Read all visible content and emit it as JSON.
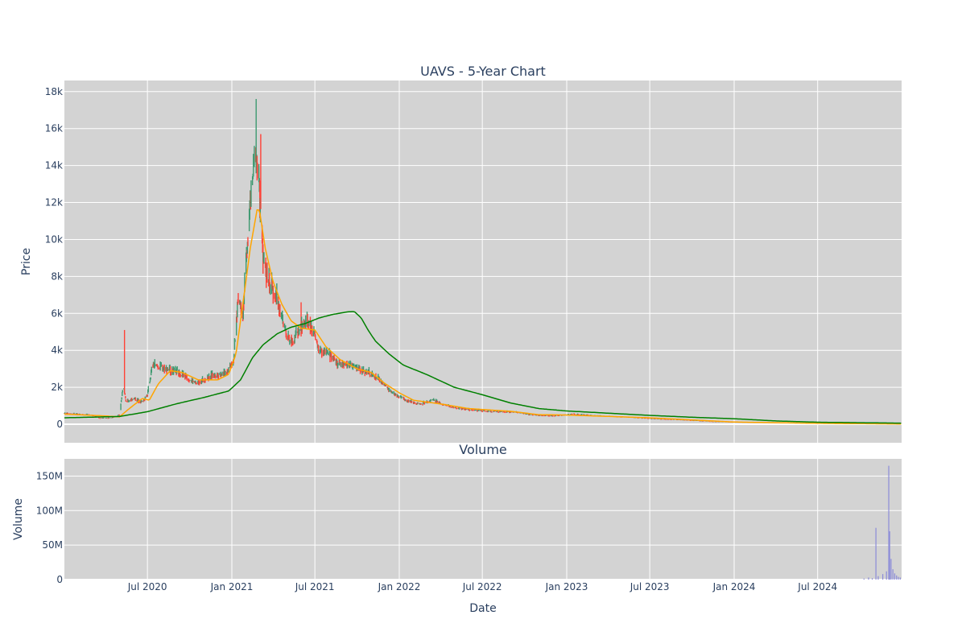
{
  "chart_data": [
    {
      "type": "candlestick",
      "title": "UAVS - 5-Year Chart",
      "ylabel": "Price",
      "ylim": [
        -1000,
        18600
      ],
      "yticks": [
        0,
        2000,
        4000,
        6000,
        8000,
        10000,
        12000,
        14000,
        16000,
        18000
      ],
      "ytick_labels": [
        "0",
        "2k",
        "4k",
        "6k",
        "8k",
        "10k",
        "12k",
        "14k",
        "16k",
        "18k"
      ],
      "x_range": [
        "2020-01-02",
        "2024-12-31"
      ],
      "grid": true,
      "background": "#d3d3d3",
      "increasing_color": "#3d9970",
      "decreasing_color": "#ff4136",
      "ma_short_color": "#ffa500",
      "ma_long_color": "#008000",
      "price_anchors": [
        [
          "2020-01-02",
          600
        ],
        [
          "2020-02-01",
          550
        ],
        [
          "2020-03-01",
          500
        ],
        [
          "2020-03-20",
          320
        ],
        [
          "2020-04-15",
          350
        ],
        [
          "2020-05-01",
          500
        ],
        [
          "2020-05-10",
          2300
        ],
        [
          "2020-05-15",
          1200
        ],
        [
          "2020-06-01",
          1400
        ],
        [
          "2020-06-20",
          1200
        ],
        [
          "2020-07-01",
          1600
        ],
        [
          "2020-07-12",
          3200
        ],
        [
          "2020-08-15",
          3000
        ],
        [
          "2020-09-15",
          2700
        ],
        [
          "2020-10-15",
          2200
        ],
        [
          "2020-11-15",
          2600
        ],
        [
          "2020-12-20",
          2800
        ],
        [
          "2021-01-05",
          3500
        ],
        [
          "2021-01-15",
          7000
        ],
        [
          "2021-01-25",
          6000
        ],
        [
          "2021-02-10",
          12000
        ],
        [
          "2021-02-22",
          15000
        ],
        [
          "2021-03-01",
          13000
        ],
        [
          "2021-03-10",
          9000
        ],
        [
          "2021-03-25",
          7500
        ],
        [
          "2021-04-10",
          6800
        ],
        [
          "2021-04-25",
          5200
        ],
        [
          "2021-05-10",
          4500
        ],
        [
          "2021-05-25",
          5000
        ],
        [
          "2021-06-10",
          5500
        ],
        [
          "2021-06-25",
          5200
        ],
        [
          "2021-07-10",
          4000
        ],
        [
          "2021-08-01",
          3800
        ],
        [
          "2021-08-20",
          3300
        ],
        [
          "2021-09-15",
          3200
        ],
        [
          "2021-10-15",
          2900
        ],
        [
          "2021-11-15",
          2500
        ],
        [
          "2021-12-15",
          1700
        ],
        [
          "2022-01-15",
          1300
        ],
        [
          "2022-02-15",
          1100
        ],
        [
          "2022-03-15",
          1300
        ],
        [
          "2022-04-15",
          1000
        ],
        [
          "2022-05-15",
          850
        ],
        [
          "2022-06-15",
          750
        ],
        [
          "2022-07-15",
          700
        ],
        [
          "2022-09-15",
          650
        ],
        [
          "2022-10-15",
          500
        ],
        [
          "2022-12-01",
          450
        ],
        [
          "2023-01-15",
          550
        ],
        [
          "2023-03-15",
          450
        ],
        [
          "2023-05-15",
          380
        ],
        [
          "2023-07-15",
          280
        ],
        [
          "2023-09-15",
          220
        ],
        [
          "2023-11-15",
          130
        ],
        [
          "2024-01-15",
          100
        ],
        [
          "2024-03-15",
          80
        ],
        [
          "2024-05-15",
          60
        ],
        [
          "2024-07-15",
          40
        ],
        [
          "2024-09-15",
          25
        ],
        [
          "2024-11-15",
          10
        ],
        [
          "2024-12-31",
          5
        ]
      ],
      "spikes": [
        [
          "2020-05-12",
          5100
        ],
        [
          "2021-01-10",
          8600
        ],
        [
          "2021-02-14",
          15000
        ],
        [
          "2021-02-23",
          17600
        ],
        [
          "2021-03-05",
          15700
        ],
        [
          "2021-03-20",
          8300
        ],
        [
          "2021-06-01",
          6600
        ]
      ],
      "ma_short": [
        [
          "2020-01-02",
          550
        ],
        [
          "2020-04-01",
          450
        ],
        [
          "2020-05-01",
          400
        ],
        [
          "2020-05-25",
          900
        ],
        [
          "2020-06-20",
          1400
        ],
        [
          "2020-07-05",
          1300
        ],
        [
          "2020-07-25",
          2200
        ],
        [
          "2020-08-20",
          2900
        ],
        [
          "2020-09-15",
          2800
        ],
        [
          "2020-10-20",
          2400
        ],
        [
          "2020-12-01",
          2400
        ],
        [
          "2020-12-25",
          2700
        ],
        [
          "2021-01-10",
          3800
        ],
        [
          "2021-01-25",
          6500
        ],
        [
          "2021-02-10",
          9500
        ],
        [
          "2021-02-25",
          11600
        ],
        [
          "2021-03-02",
          11600
        ],
        [
          "2021-03-15",
          9500
        ],
        [
          "2021-04-01",
          7700
        ],
        [
          "2021-04-20",
          6500
        ],
        [
          "2021-05-10",
          5600
        ],
        [
          "2021-06-01",
          5200
        ],
        [
          "2021-07-01",
          5100
        ],
        [
          "2021-07-25",
          4200
        ],
        [
          "2021-08-25",
          3500
        ],
        [
          "2021-10-01",
          3000
        ],
        [
          "2021-11-01",
          2800
        ],
        [
          "2021-12-01",
          2200
        ],
        [
          "2022-01-01",
          1700
        ],
        [
          "2022-02-01",
          1300
        ],
        [
          "2022-04-01",
          1100
        ],
        [
          "2022-06-01",
          850
        ],
        [
          "2022-09-01",
          700
        ],
        [
          "2022-11-01",
          520
        ],
        [
          "2023-01-01",
          500
        ],
        [
          "2023-07-01",
          350
        ],
        [
          "2024-01-01",
          120
        ],
        [
          "2024-07-01",
          50
        ],
        [
          "2024-12-31",
          15
        ]
      ],
      "ma_long": [
        [
          "2020-01-02",
          350
        ],
        [
          "2020-05-01",
          420
        ],
        [
          "2020-07-01",
          680
        ],
        [
          "2020-09-01",
          1100
        ],
        [
          "2020-11-01",
          1450
        ],
        [
          "2020-12-25",
          1800
        ],
        [
          "2021-01-20",
          2400
        ],
        [
          "2021-02-15",
          3600
        ],
        [
          "2021-03-10",
          4300
        ],
        [
          "2021-04-10",
          4900
        ],
        [
          "2021-05-10",
          5250
        ],
        [
          "2021-06-10",
          5450
        ],
        [
          "2021-07-10",
          5750
        ],
        [
          "2021-08-10",
          5950
        ],
        [
          "2021-09-10",
          6080
        ],
        [
          "2021-09-25",
          6100
        ],
        [
          "2021-10-10",
          5750
        ],
        [
          "2021-10-25",
          5100
        ],
        [
          "2021-11-10",
          4500
        ],
        [
          "2021-12-10",
          3800
        ],
        [
          "2022-01-10",
          3200
        ],
        [
          "2022-03-01",
          2700
        ],
        [
          "2022-05-01",
          2000
        ],
        [
          "2022-07-01",
          1600
        ],
        [
          "2022-09-01",
          1150
        ],
        [
          "2022-11-01",
          850
        ],
        [
          "2023-01-01",
          720
        ],
        [
          "2023-04-01",
          600
        ],
        [
          "2023-07-01",
          480
        ],
        [
          "2023-10-01",
          380
        ],
        [
          "2024-01-01",
          300
        ],
        [
          "2024-04-01",
          180
        ],
        [
          "2024-07-01",
          110
        ],
        [
          "2024-12-31",
          60
        ]
      ]
    },
    {
      "type": "bar",
      "title": "Volume",
      "ylabel": "Volume",
      "xlabel": "Date",
      "ylim": [
        0,
        175000000
      ],
      "yticks": [
        0,
        50000000,
        100000000,
        150000000
      ],
      "ytick_labels": [
        "0",
        "50M",
        "100M",
        "150M"
      ],
      "xticks": [
        "2020-07-01",
        "2021-01-01",
        "2021-07-01",
        "2022-01-01",
        "2022-07-01",
        "2023-01-01",
        "2023-07-01",
        "2024-01-01",
        "2024-07-01"
      ],
      "xtick_labels": [
        "Jul 2020",
        "Jan 2021",
        "Jul 2021",
        "Jan 2022",
        "Jul 2022",
        "Jan 2023",
        "Jul 2023",
        "Jan 2024",
        "Jul 2024"
      ],
      "bar_color": "#8b8bd8",
      "volume_points": [
        [
          "2024-10-10",
          1500000
        ],
        [
          "2024-10-20",
          3000000
        ],
        [
          "2024-10-28",
          2000000
        ],
        [
          "2024-11-05",
          75000000
        ],
        [
          "2024-11-10",
          5000000
        ],
        [
          "2024-11-20",
          8000000
        ],
        [
          "2024-11-28",
          12000000
        ],
        [
          "2024-12-03",
          165000000
        ],
        [
          "2024-12-05",
          70000000
        ],
        [
          "2024-12-08",
          30000000
        ],
        [
          "2024-12-12",
          15000000
        ],
        [
          "2024-12-16",
          9000000
        ],
        [
          "2024-12-20",
          6000000
        ],
        [
          "2024-12-24",
          4000000
        ],
        [
          "2024-12-28",
          3000000
        ]
      ]
    }
  ]
}
